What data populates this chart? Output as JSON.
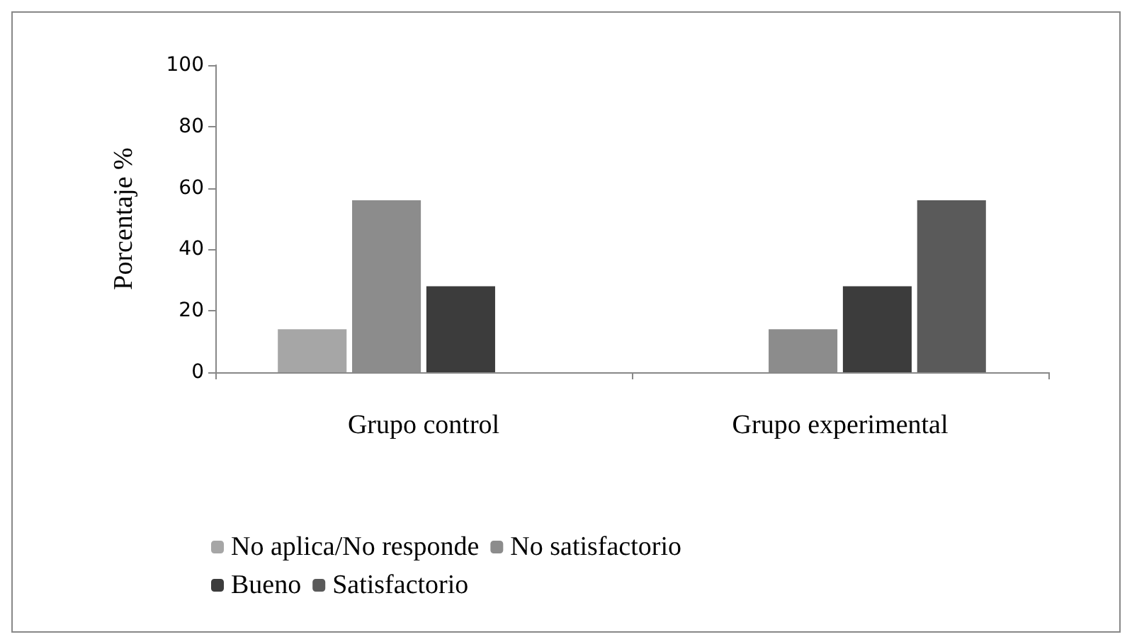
{
  "chart_data": {
    "type": "bar",
    "ylabel": "Porcentaje %",
    "categories": [
      "Grupo control",
      "Grupo experimental"
    ],
    "series": [
      {
        "name": "No aplica/No responde",
        "color": "#a6a6a6",
        "values": [
          14,
          0
        ]
      },
      {
        "name": "No satisfactorio",
        "color": "#8c8c8c",
        "values": [
          56,
          14
        ]
      },
      {
        "name": "Bueno",
        "color": "#3c3c3c",
        "values": [
          28,
          28
        ]
      },
      {
        "name": "Satisfactorio",
        "color": "#5a5a5a",
        "values": [
          0,
          56
        ]
      }
    ],
    "ylim": [
      0,
      100
    ],
    "yticks": [
      0,
      20,
      40,
      60,
      80,
      100
    ],
    "grid": false,
    "legend": "bottom"
  }
}
